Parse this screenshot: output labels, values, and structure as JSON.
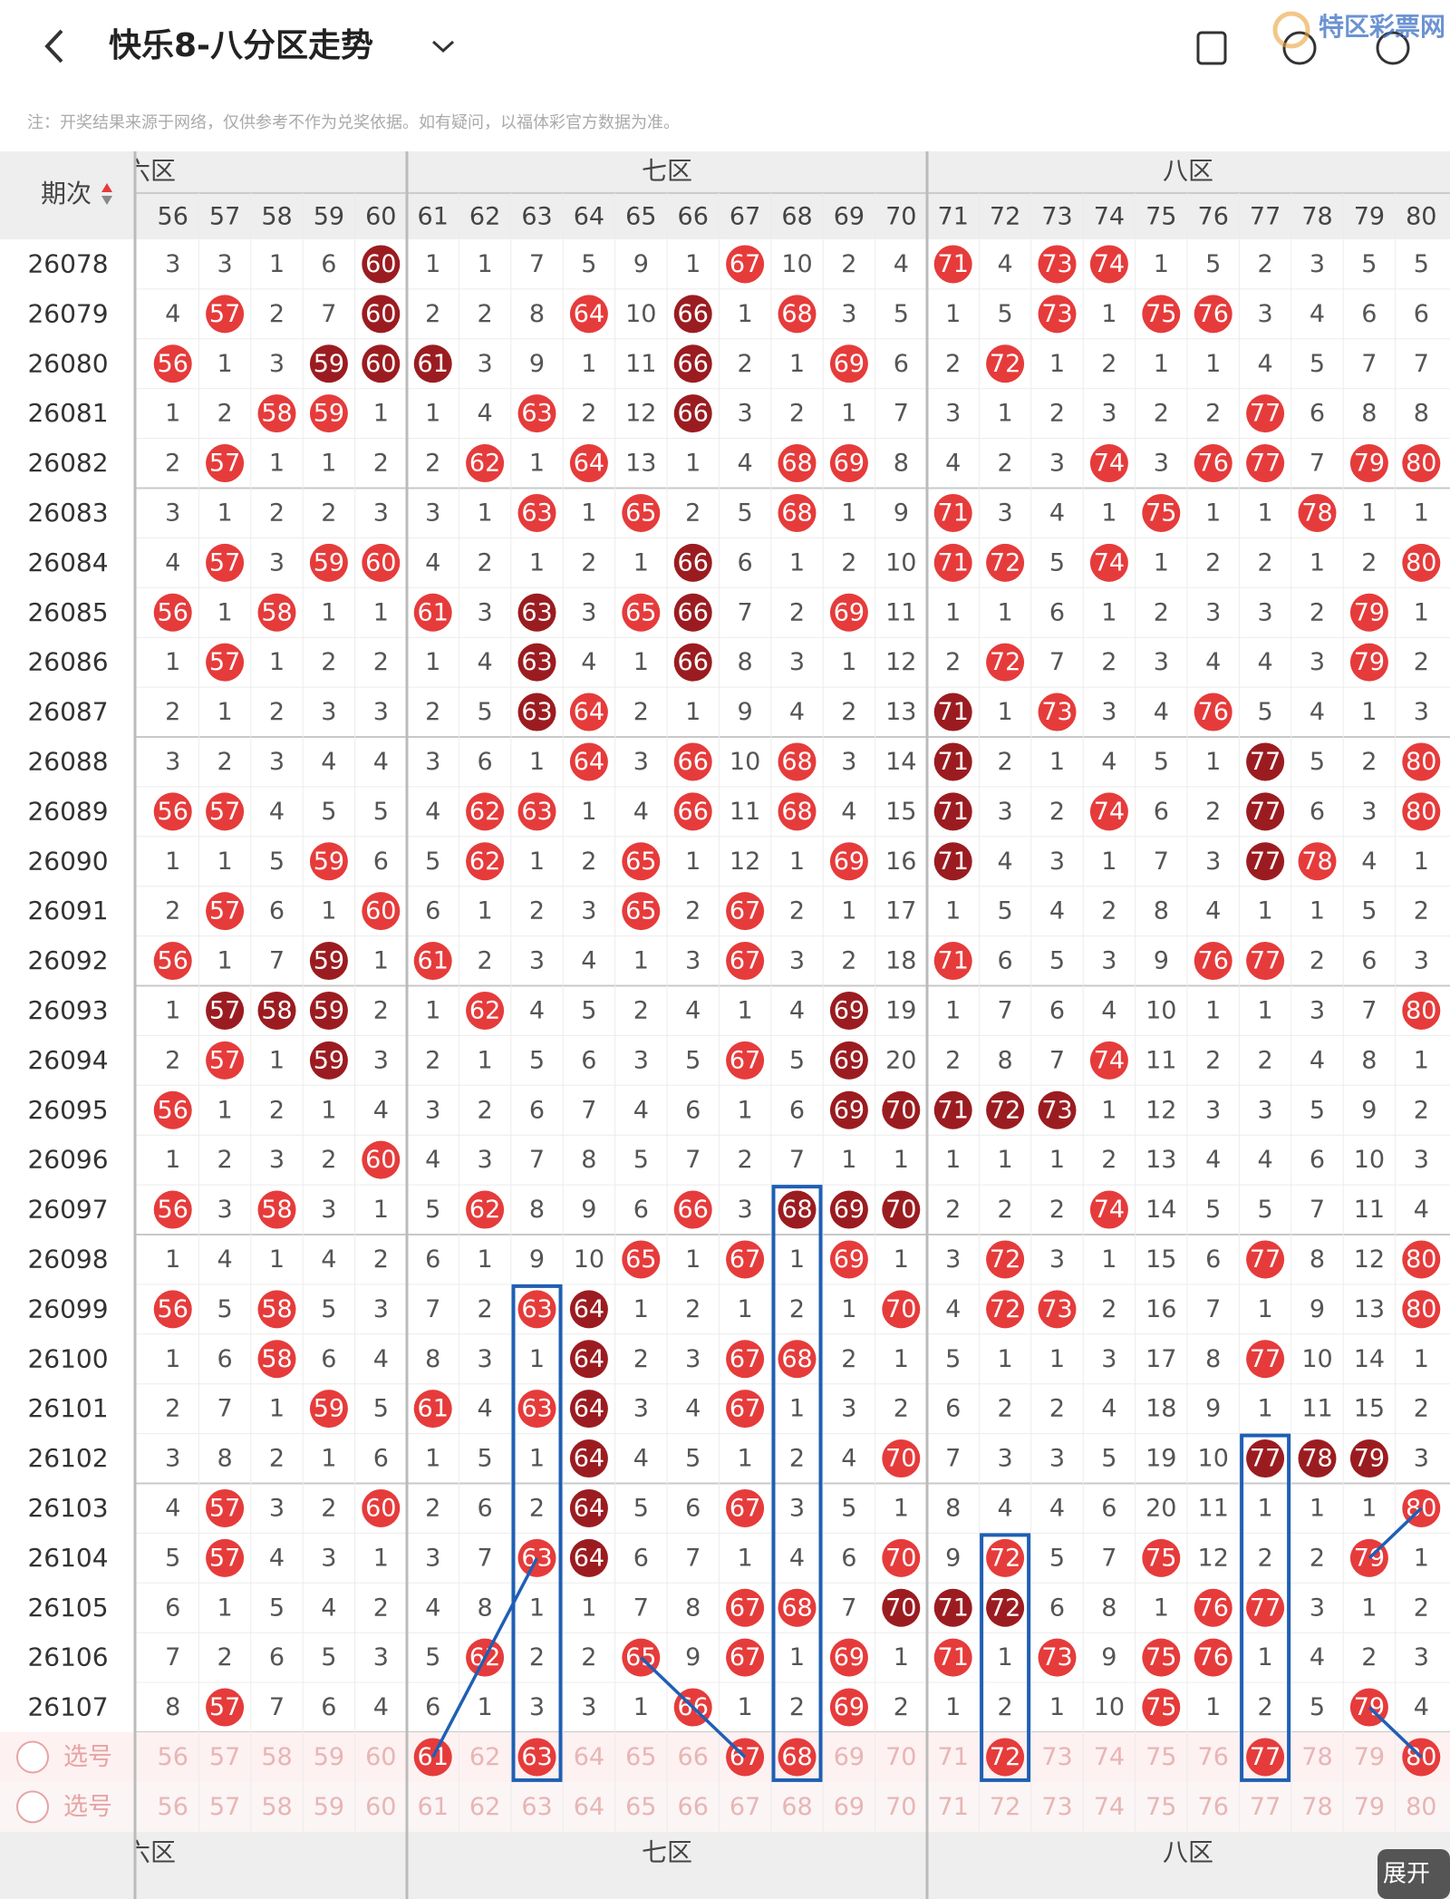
{
  "header": {
    "title": "快乐8-八分区走势",
    "watermark": "特区彩票网",
    "note": "注：开奖结果来源于网络，仅供参考不作为兑奖依据。如有疑问，以福体彩官方数据为准。"
  },
  "table": {
    "issue_label": "期次",
    "zones": [
      "六区",
      "七区",
      "八区"
    ],
    "columns": [
      56,
      57,
      58,
      59,
      60,
      61,
      62,
      63,
      64,
      65,
      66,
      67,
      68,
      69,
      70,
      71,
      72,
      73,
      74,
      75,
      76,
      77,
      78,
      79,
      80
    ],
    "rows": [
      {
        "issue": "26078",
        "cells": [
          3,
          3,
          1,
          6,
          60,
          1,
          1,
          7,
          5,
          9,
          1,
          67,
          10,
          2,
          4,
          71,
          4,
          73,
          74,
          1,
          5,
          2,
          3,
          5,
          5
        ],
        "dark": [
          60
        ]
      },
      {
        "issue": "26079",
        "cells": [
          4,
          57,
          2,
          7,
          60,
          2,
          2,
          8,
          64,
          10,
          66,
          1,
          68,
          3,
          5,
          1,
          5,
          73,
          1,
          75,
          76,
          3,
          4,
          6,
          6
        ],
        "dark": [
          60,
          66
        ]
      },
      {
        "issue": "26080",
        "cells": [
          56,
          1,
          3,
          59,
          60,
          61,
          3,
          9,
          1,
          11,
          66,
          2,
          1,
          69,
          6,
          2,
          72,
          1,
          2,
          1,
          1,
          4,
          5,
          7,
          7
        ],
        "dark": [
          59,
          60,
          61,
          66
        ]
      },
      {
        "issue": "26081",
        "cells": [
          1,
          2,
          58,
          59,
          1,
          1,
          4,
          63,
          2,
          12,
          66,
          3,
          2,
          1,
          7,
          3,
          1,
          2,
          3,
          2,
          2,
          77,
          6,
          8,
          8
        ],
        "dark": [
          66
        ]
      },
      {
        "issue": "26082",
        "cells": [
          2,
          57,
          1,
          1,
          2,
          2,
          62,
          1,
          64,
          13,
          1,
          4,
          68,
          69,
          8,
          4,
          2,
          3,
          74,
          3,
          76,
          77,
          7,
          79,
          80
        ],
        "dark": []
      },
      {
        "issue": "26083",
        "cells": [
          3,
          1,
          2,
          2,
          3,
          3,
          1,
          63,
          1,
          65,
          2,
          5,
          68,
          1,
          9,
          71,
          3,
          4,
          1,
          75,
          1,
          1,
          78,
          1,
          1
        ],
        "dark": []
      },
      {
        "issue": "26084",
        "cells": [
          4,
          57,
          3,
          59,
          60,
          4,
          2,
          1,
          2,
          1,
          66,
          6,
          1,
          2,
          10,
          71,
          72,
          5,
          74,
          1,
          2,
          2,
          1,
          2,
          80
        ],
        "dark": [
          66
        ]
      },
      {
        "issue": "26085",
        "cells": [
          56,
          1,
          58,
          1,
          1,
          61,
          3,
          63,
          3,
          65,
          66,
          7,
          2,
          69,
          11,
          1,
          1,
          6,
          1,
          2,
          3,
          3,
          2,
          79,
          1
        ],
        "dark": [
          63,
          66
        ]
      },
      {
        "issue": "26086",
        "cells": [
          1,
          57,
          1,
          2,
          2,
          1,
          4,
          63,
          4,
          1,
          66,
          8,
          3,
          1,
          12,
          2,
          72,
          7,
          2,
          3,
          4,
          4,
          3,
          79,
          2
        ],
        "dark": [
          63,
          66
        ]
      },
      {
        "issue": "26087",
        "cells": [
          2,
          1,
          2,
          3,
          3,
          2,
          5,
          63,
          64,
          2,
          1,
          9,
          4,
          2,
          13,
          71,
          1,
          73,
          3,
          4,
          76,
          5,
          4,
          1,
          3
        ],
        "dark": [
          63,
          71
        ]
      },
      {
        "issue": "26088",
        "cells": [
          3,
          2,
          3,
          4,
          4,
          3,
          6,
          1,
          64,
          3,
          66,
          10,
          68,
          3,
          14,
          71,
          2,
          1,
          4,
          5,
          1,
          77,
          5,
          2,
          80
        ],
        "dark": [
          71,
          77
        ]
      },
      {
        "issue": "26089",
        "cells": [
          56,
          57,
          4,
          5,
          5,
          4,
          62,
          63,
          1,
          4,
          66,
          11,
          68,
          4,
          15,
          71,
          3,
          2,
          74,
          6,
          2,
          77,
          6,
          3,
          80
        ],
        "dark": [
          71,
          77
        ]
      },
      {
        "issue": "26090",
        "cells": [
          1,
          1,
          5,
          59,
          6,
          5,
          62,
          1,
          2,
          65,
          1,
          12,
          1,
          69,
          16,
          71,
          4,
          3,
          1,
          7,
          3,
          77,
          78,
          4,
          1
        ],
        "dark": [
          71,
          77
        ]
      },
      {
        "issue": "26091",
        "cells": [
          2,
          57,
          6,
          1,
          60,
          6,
          1,
          2,
          3,
          65,
          2,
          67,
          2,
          1,
          17,
          1,
          5,
          4,
          2,
          8,
          4,
          1,
          1,
          5,
          2
        ],
        "dark": []
      },
      {
        "issue": "26092",
        "cells": [
          56,
          1,
          7,
          59,
          1,
          61,
          2,
          3,
          4,
          1,
          3,
          67,
          3,
          2,
          18,
          71,
          6,
          5,
          3,
          9,
          76,
          77,
          2,
          6,
          3
        ],
        "dark": [
          59
        ]
      },
      {
        "issue": "26093",
        "cells": [
          1,
          57,
          58,
          59,
          2,
          1,
          62,
          4,
          5,
          2,
          4,
          1,
          4,
          69,
          19,
          1,
          7,
          6,
          4,
          10,
          1,
          1,
          3,
          7,
          80
        ],
        "dark": [
          57,
          58,
          59,
          69
        ]
      },
      {
        "issue": "26094",
        "cells": [
          2,
          57,
          1,
          59,
          3,
          2,
          1,
          5,
          6,
          3,
          5,
          67,
          5,
          69,
          20,
          2,
          8,
          7,
          74,
          11,
          2,
          2,
          4,
          8,
          1
        ],
        "dark": [
          59,
          69
        ]
      },
      {
        "issue": "26095",
        "cells": [
          56,
          1,
          2,
          1,
          4,
          3,
          2,
          6,
          7,
          4,
          6,
          1,
          6,
          69,
          70,
          71,
          72,
          73,
          1,
          12,
          3,
          3,
          5,
          9,
          2
        ],
        "dark": [
          69,
          70,
          71,
          72,
          73
        ]
      },
      {
        "issue": "26096",
        "cells": [
          1,
          2,
          3,
          2,
          60,
          4,
          3,
          7,
          8,
          5,
          7,
          2,
          7,
          1,
          1,
          1,
          1,
          1,
          2,
          13,
          4,
          4,
          6,
          10,
          3
        ],
        "dark": []
      },
      {
        "issue": "26097",
        "cells": [
          56,
          3,
          58,
          3,
          1,
          5,
          62,
          8,
          9,
          6,
          66,
          3,
          68,
          69,
          70,
          2,
          2,
          2,
          74,
          14,
          5,
          5,
          7,
          11,
          4
        ],
        "dark": [
          68,
          69,
          70
        ]
      },
      {
        "issue": "26098",
        "cells": [
          1,
          4,
          1,
          4,
          2,
          6,
          1,
          9,
          10,
          65,
          1,
          67,
          1,
          69,
          1,
          3,
          72,
          3,
          1,
          15,
          6,
          77,
          8,
          12,
          80
        ],
        "dark": []
      },
      {
        "issue": "26099",
        "cells": [
          56,
          5,
          58,
          5,
          3,
          7,
          2,
          63,
          64,
          1,
          2,
          1,
          2,
          1,
          70,
          4,
          72,
          73,
          2,
          16,
          7,
          1,
          9,
          13,
          80
        ],
        "dark": [
          64
        ]
      },
      {
        "issue": "26100",
        "cells": [
          1,
          6,
          58,
          6,
          4,
          8,
          3,
          1,
          64,
          2,
          3,
          67,
          68,
          2,
          1,
          5,
          1,
          1,
          3,
          17,
          8,
          77,
          10,
          14,
          1
        ],
        "dark": [
          64
        ]
      },
      {
        "issue": "26101",
        "cells": [
          2,
          7,
          1,
          59,
          5,
          61,
          4,
          63,
          64,
          3,
          4,
          67,
          1,
          3,
          2,
          6,
          2,
          2,
          4,
          18,
          9,
          1,
          11,
          15,
          2
        ],
        "dark": [
          64
        ]
      },
      {
        "issue": "26102",
        "cells": [
          3,
          8,
          2,
          1,
          6,
          1,
          5,
          1,
          64,
          4,
          5,
          1,
          2,
          4,
          70,
          7,
          3,
          3,
          5,
          19,
          10,
          77,
          78,
          79,
          3
        ],
        "dark": [
          64,
          77,
          78,
          79
        ]
      },
      {
        "issue": "26103",
        "cells": [
          4,
          57,
          3,
          2,
          60,
          2,
          6,
          2,
          64,
          5,
          6,
          67,
          3,
          5,
          1,
          8,
          4,
          4,
          6,
          20,
          11,
          1,
          1,
          1,
          80
        ],
        "dark": [
          64
        ]
      },
      {
        "issue": "26104",
        "cells": [
          5,
          57,
          4,
          3,
          1,
          3,
          7,
          63,
          64,
          6,
          7,
          1,
          4,
          6,
          70,
          9,
          72,
          5,
          7,
          75,
          12,
          2,
          2,
          79,
          1
        ],
        "dark": [
          64
        ]
      },
      {
        "issue": "26105",
        "cells": [
          6,
          1,
          5,
          4,
          2,
          4,
          8,
          1,
          1,
          7,
          8,
          67,
          68,
          7,
          70,
          71,
          72,
          6,
          8,
          1,
          76,
          77,
          3,
          1,
          2
        ],
        "dark": [
          70,
          71,
          72
        ]
      },
      {
        "issue": "26106",
        "cells": [
          7,
          2,
          6,
          5,
          3,
          5,
          62,
          2,
          2,
          65,
          9,
          67,
          1,
          69,
          1,
          71,
          1,
          73,
          9,
          75,
          76,
          1,
          4,
          2,
          3
        ],
        "dark": []
      },
      {
        "issue": "26107",
        "cells": [
          8,
          57,
          7,
          6,
          4,
          6,
          1,
          3,
          3,
          1,
          66,
          1,
          2,
          69,
          2,
          1,
          2,
          1,
          10,
          75,
          1,
          2,
          5,
          79,
          4
        ],
        "dark": []
      }
    ],
    "select_label": "选号",
    "select_rows": [
      {
        "picked": [
          61,
          63,
          67,
          68,
          72,
          77,
          80
        ]
      },
      {
        "picked": []
      }
    ],
    "expand": "展开"
  }
}
